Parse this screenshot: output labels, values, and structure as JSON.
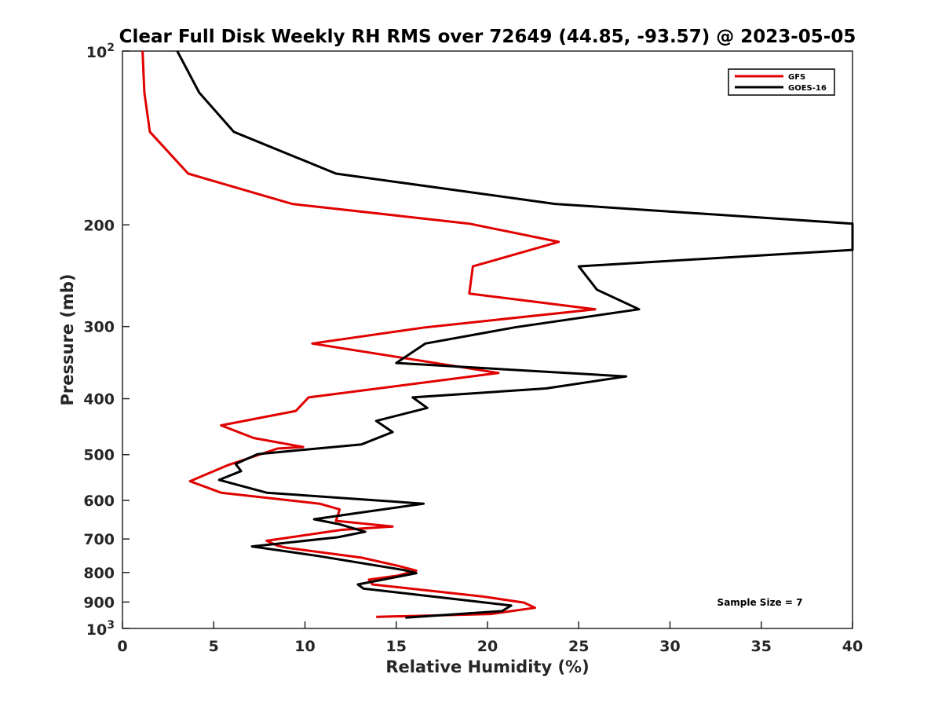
{
  "chart_data": {
    "type": "line",
    "title": "Clear Full Disk Weekly RH RMS over 72649 (44.85, -93.57) @ 2023-05-05",
    "xlabel": "Relative Humidity (%)",
    "ylabel": "Pressure (mb)",
    "xlim": [
      0,
      40
    ],
    "ylim": [
      100,
      1000
    ],
    "y_scale": "log",
    "y_reversed": true,
    "x_ticks": [
      0,
      5,
      10,
      15,
      20,
      25,
      30,
      35,
      40
    ],
    "x_tick_labels": [
      "0",
      "5",
      "10",
      "15",
      "20",
      "25",
      "30",
      "35",
      "40"
    ],
    "y_ticks": [
      200,
      300,
      400,
      500,
      600,
      700,
      800,
      900
    ],
    "y_tick_labels": [
      "200",
      "300",
      "400",
      "500",
      "600",
      "700",
      "800",
      "900"
    ],
    "y_decade_ticks": [
      {
        "value": 100,
        "base": "10",
        "exp": "2"
      },
      {
        "value": 1000,
        "base": "10",
        "exp": "3"
      }
    ],
    "grid": false,
    "legend_position": "top-right",
    "annotation": "Sample Size = 7",
    "series": [
      {
        "name": "GFS",
        "color": "#e00000",
        "x": [
          1.1,
          1.2,
          1.5,
          3.6,
          9.3,
          19.0,
          23.9,
          19.2,
          19.0,
          25.9,
          16.6,
          10.4,
          20.6,
          10.2,
          9.5,
          5.4,
          7.2,
          9.9,
          8.5,
          5.8,
          3.7,
          5.4,
          10.8,
          11.9,
          11.7,
          14.8,
          12.0,
          7.9,
          8.5,
          9.0,
          13.1,
          15.1,
          16.1,
          15.1,
          13.5,
          13.7,
          19.7,
          22.0,
          22.6,
          20.2,
          13.9
        ],
        "y": [
          100,
          118,
          138,
          163,
          184,
          199,
          214,
          236,
          263,
          280,
          301,
          321,
          361,
          398,
          420,
          445,
          468,
          485,
          488,
          521,
          556,
          582,
          608,
          622,
          651,
          666,
          675,
          705,
          719,
          725,
          754,
          779,
          794,
          810,
          823,
          839,
          880,
          902,
          921,
          944,
          955
        ]
      },
      {
        "name": "GOES-16",
        "color": "#000000",
        "x": [
          3.0,
          4.2,
          6.1,
          11.7,
          23.7,
          40.0,
          40.0,
          25.0,
          26.0,
          28.3,
          21.5,
          16.6,
          15.0,
          27.6,
          23.2,
          15.9,
          16.7,
          13.9,
          14.8,
          13.1,
          7.4,
          6.2,
          6.5,
          5.3,
          7.9,
          16.5,
          12.9,
          10.5,
          11.9,
          13.3,
          11.8,
          7.1,
          10.7,
          15.4,
          16.1,
          12.9,
          13.2,
          18.7,
          21.3,
          20.8,
          15.5
        ],
        "y": [
          100,
          118,
          138,
          163,
          184,
          199,
          221,
          236,
          259,
          280,
          301,
          321,
          347,
          366,
          384,
          398,
          415,
          437,
          457,
          480,
          499,
          519,
          534,
          553,
          582,
          608,
          631,
          647,
          660,
          680,
          695,
          721,
          749,
          792,
          802,
          839,
          853,
          893,
          913,
          933,
          958
        ]
      }
    ]
  }
}
